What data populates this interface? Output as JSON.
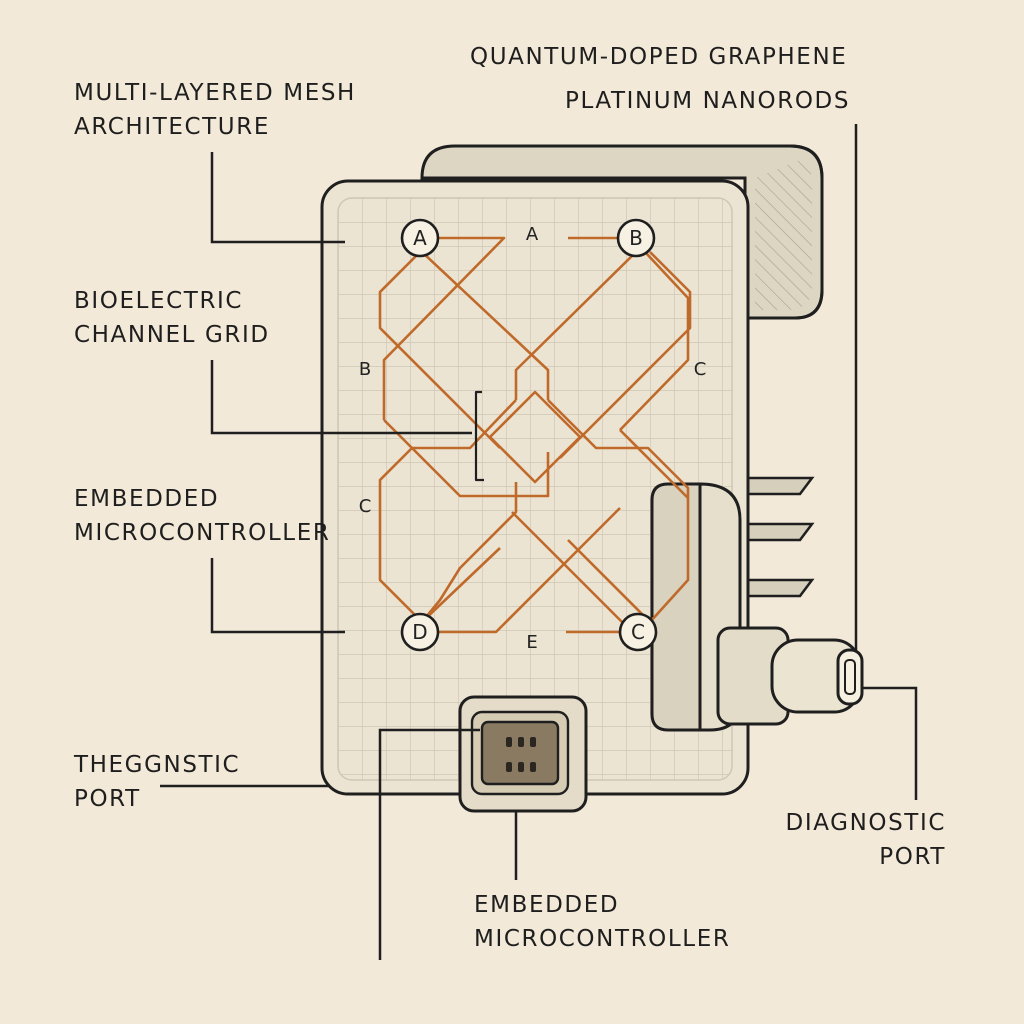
{
  "labels": {
    "quantum": "QUANTUM-DOPED GRAPHENE",
    "platinum": "PLATINUM NANORODS",
    "mesh": [
      "MULTI-LAYERED MESH",
      "ARCHITECTURE"
    ],
    "bioelectric": [
      "BIOELECTRIC",
      "CHANNEL GRID"
    ],
    "embedded_left": [
      "EMBEDDED",
      "MICROCONTROLLER"
    ],
    "theggnstic": [
      "THEGGNSTIC",
      "PORT"
    ],
    "embedded_bottom": [
      "EMBEDDED",
      "MICROCONTROLLER"
    ],
    "diagnostic": [
      "DIAGNOSTIC",
      "PORT"
    ]
  },
  "nodes": {
    "top_left": "A",
    "top_right": "B",
    "bottom_left": "D",
    "bottom_right": "C"
  },
  "grid_letters": {
    "top": "A",
    "left_upper": "B",
    "right": "C",
    "left_lower": "C",
    "bottom": "E"
  },
  "colors": {
    "background": "#f3e9d8",
    "panel": "#ece4d2",
    "grid": "#cfc7b4",
    "trace": "#bf6a2a",
    "outline": "#1f1f1f",
    "chip": "#8a7a62"
  }
}
